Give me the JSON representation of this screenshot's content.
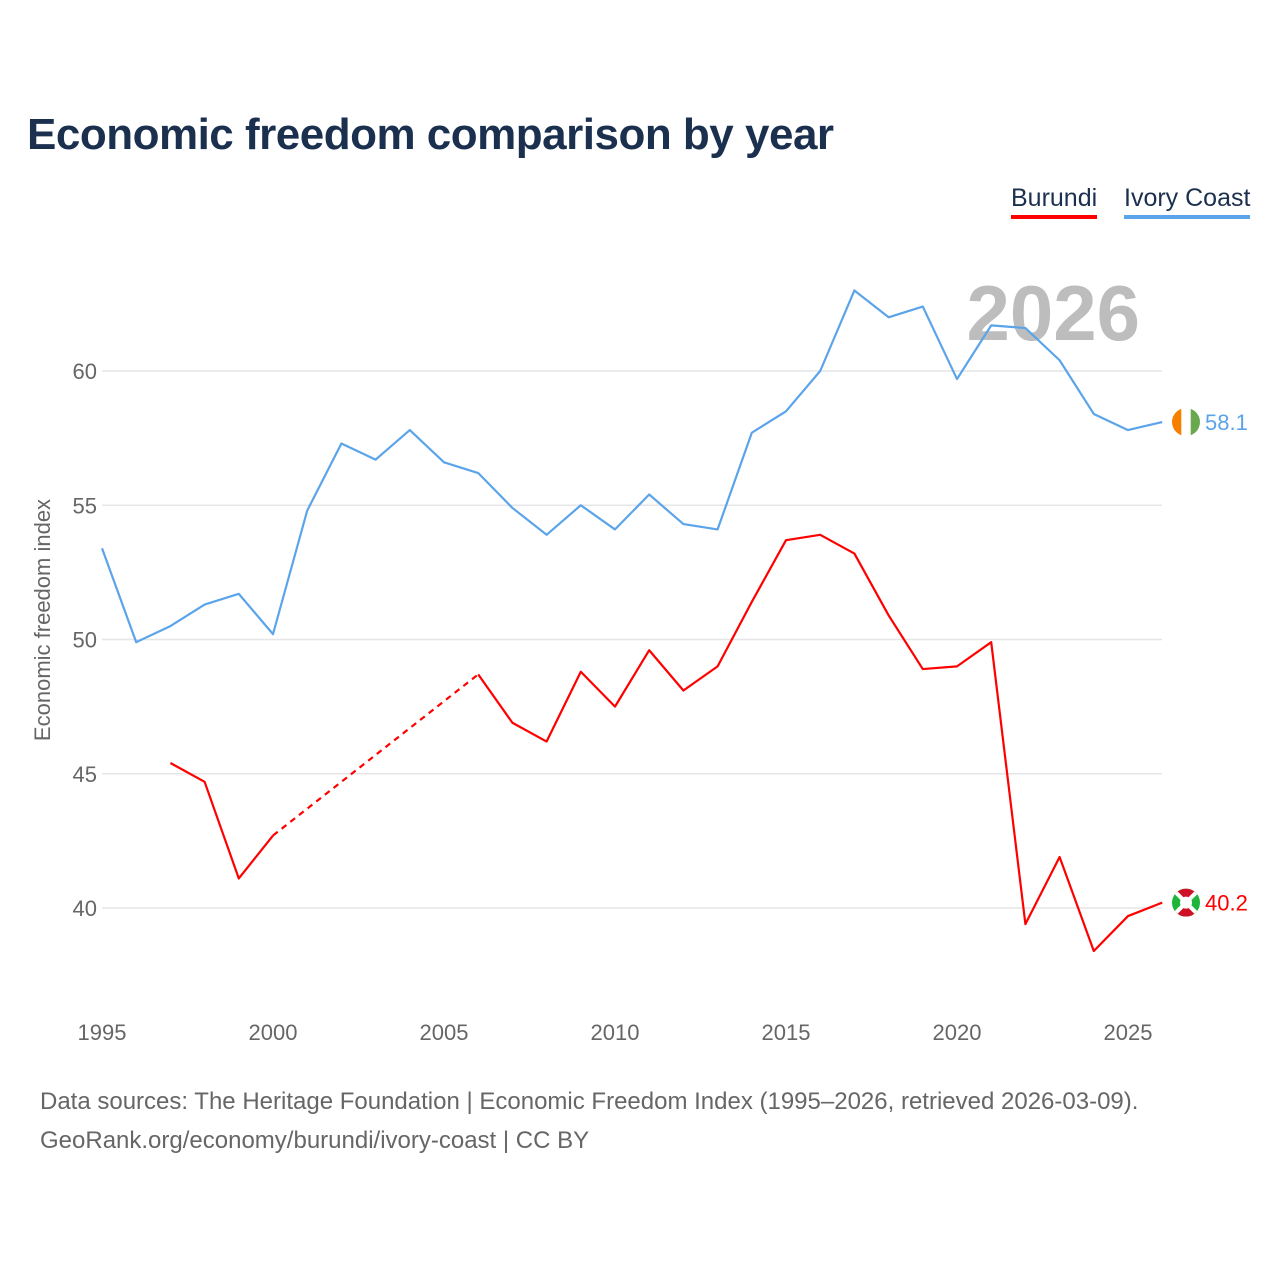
{
  "chart_data": {
    "type": "line",
    "title": "Economic freedom comparison by year",
    "ylabel": "Economic freedom index",
    "xlabel": "",
    "xlim": [
      1995,
      2026
    ],
    "ylim": [
      36.6,
      64
    ],
    "x_ticks": [
      "1995",
      "2000",
      "2005",
      "2010",
      "2015",
      "2020",
      "2025"
    ],
    "y_ticks": [
      "40",
      "45",
      "50",
      "55",
      "60"
    ],
    "grid": true,
    "legend_position": "top-right",
    "watermark_year": "2026",
    "x": [
      1995,
      1996,
      1997,
      1998,
      1999,
      2000,
      2001,
      2002,
      2003,
      2004,
      2005,
      2006,
      2007,
      2008,
      2009,
      2010,
      2011,
      2012,
      2013,
      2014,
      2015,
      2016,
      2017,
      2018,
      2019,
      2020,
      2021,
      2022,
      2023,
      2024,
      2025,
      2026
    ],
    "series": [
      {
        "name": "Burundi",
        "color": "#ff0000",
        "end_label": "40.2",
        "values": [
          null,
          null,
          45.4,
          44.7,
          41.1,
          42.7,
          null,
          null,
          null,
          null,
          null,
          48.7,
          46.9,
          46.2,
          48.8,
          47.5,
          49.6,
          48.1,
          49.0,
          51.4,
          53.7,
          53.9,
          53.2,
          50.9,
          48.9,
          49.0,
          49.9,
          39.4,
          41.9,
          38.4,
          39.7,
          40.2
        ]
      },
      {
        "name": "Ivory Coast",
        "color": "#5ba4ea",
        "end_label": "58.1",
        "values": [
          53.4,
          49.9,
          50.5,
          51.3,
          51.7,
          50.2,
          54.8,
          57.3,
          56.7,
          57.8,
          56.6,
          56.2,
          54.9,
          53.9,
          55.0,
          54.1,
          55.4,
          54.3,
          54.1,
          57.7,
          58.5,
          60.0,
          63.0,
          62.0,
          62.4,
          59.7,
          61.7,
          61.6,
          60.4,
          58.4,
          57.8,
          58.1
        ]
      }
    ]
  },
  "footer": {
    "line1": "Data sources: The Heritage Foundation | Economic Freedom Index (1995–2026, retrieved 2026-03-09).",
    "line2": "GeoRank.org/economy/burundi/ivory-coast | CC BY"
  }
}
